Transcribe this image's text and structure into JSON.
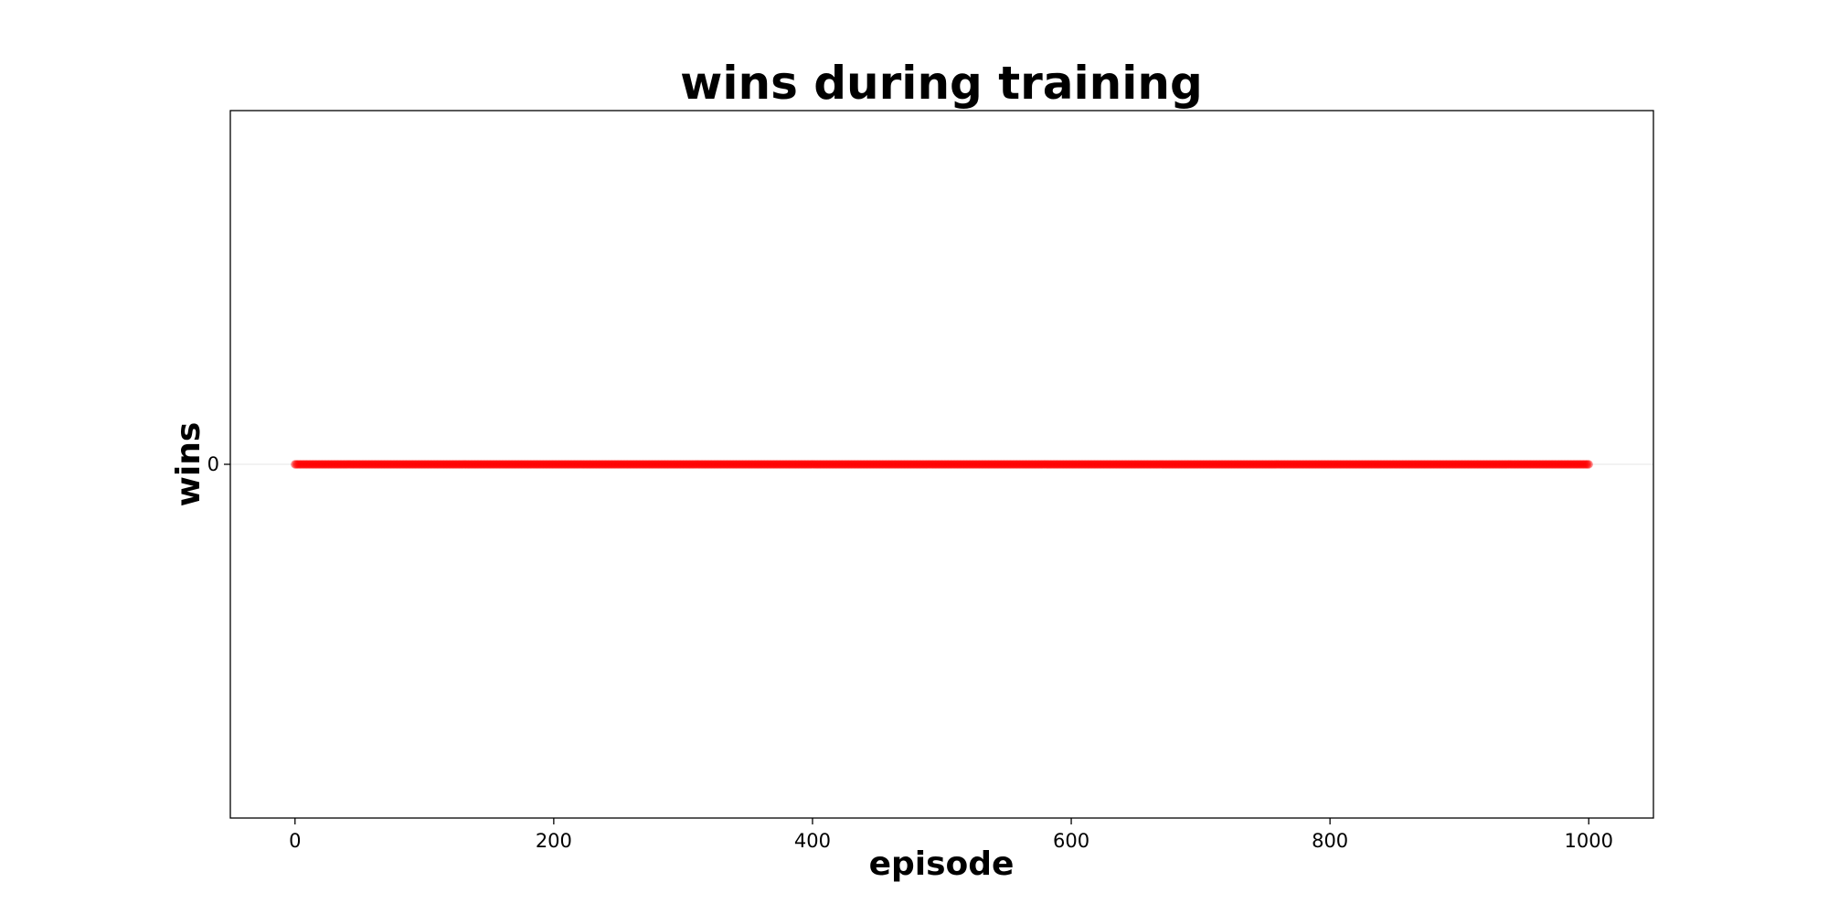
{
  "chart_data": {
    "type": "scatter",
    "title": "wins during training",
    "xlabel": "episode",
    "ylabel": "wins",
    "xlim": [
      -50,
      1050
    ],
    "ylim": [
      -1,
      1
    ],
    "xticks": [
      0,
      200,
      400,
      600,
      800,
      1000
    ],
    "yticks": [
      0
    ],
    "grid": "horizontal",
    "series": [
      {
        "color": "#ff0000",
        "x_start": 0,
        "x_end": 1000,
        "x_step": 1,
        "y": 0
      }
    ]
  }
}
